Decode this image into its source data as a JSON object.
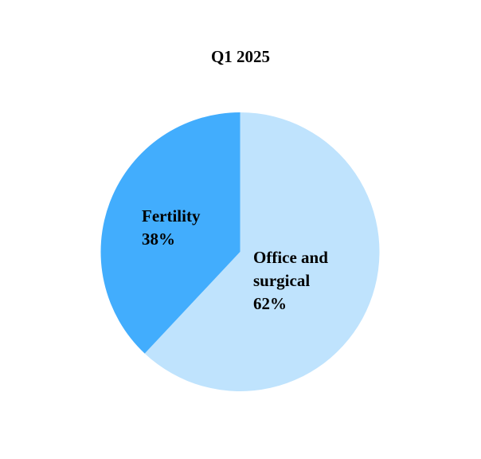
{
  "chart_data": {
    "type": "pie",
    "title": "Q1 2025",
    "slices": [
      {
        "label": "Office and surgical",
        "label_lines": [
          "Office and",
          "surgical"
        ],
        "value": 62,
        "value_label": "62%",
        "color": "#bfe3fd"
      },
      {
        "label": "Fertility",
        "label_lines": [
          "Fertility"
        ],
        "value": 38,
        "value_label": "38%",
        "color": "#42adfd"
      }
    ],
    "start_angle": "12 o'clock",
    "direction": "clockwise",
    "legend": "none"
  }
}
